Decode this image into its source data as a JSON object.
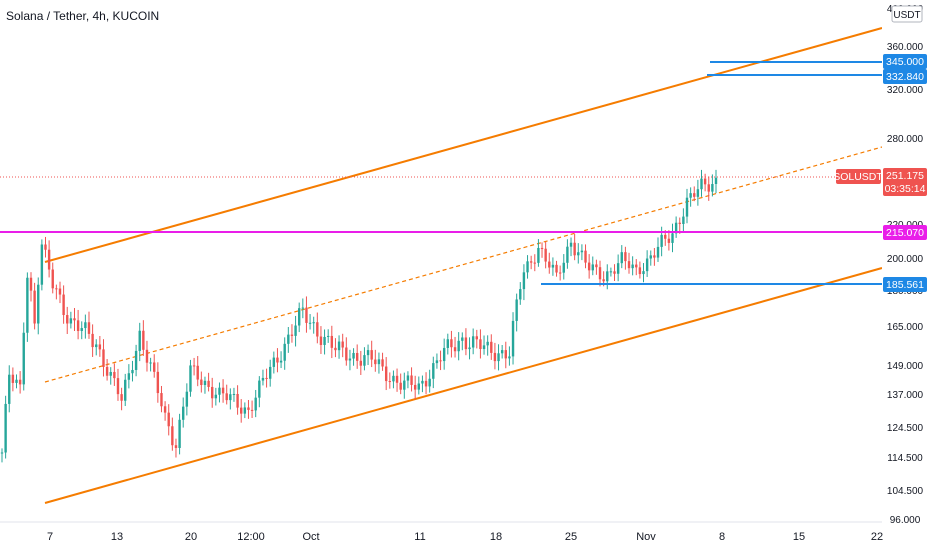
{
  "header": {
    "title": "Solana / Tether, 4h, KUCOIN",
    "currency_button": "USDT"
  },
  "chart_data": {
    "type": "candlestick",
    "symbol": "SOLUSDT",
    "interval": "4h",
    "exchange": "KUCOIN",
    "y_scale": "log",
    "ylim": [
      96,
      400
    ],
    "y_ticks": [
      "400.000",
      "360.000",
      "320.000",
      "280.000",
      "220.000",
      "200.000",
      "180.000",
      "165.000",
      "149.000",
      "137.000",
      "124.500",
      "114.500",
      "104.500",
      "96.000"
    ],
    "x_ticks": [
      "7",
      "13",
      "20",
      "12:00",
      "Oct",
      "11",
      "18",
      "25",
      "Nov",
      "8",
      "15",
      "22"
    ],
    "last_price": {
      "label": "SOLUSDT",
      "value": "251.175",
      "countdown": "03:35:14",
      "color": "#ef5350"
    },
    "horizontal_levels": [
      {
        "value": "345.000",
        "color": "#1e88e5"
      },
      {
        "value": "332.840",
        "color": "#1e88e5"
      },
      {
        "value": "215.070",
        "color": "#e91ee9"
      },
      {
        "value": "185.561",
        "color": "#1e88e5"
      }
    ],
    "channel": {
      "color": "#f57c00",
      "upper": "trend line",
      "lower": "trend line",
      "mid": "dashed trend line"
    },
    "candle_colors": {
      "up": "#26a69a",
      "down": "#ef5350"
    },
    "price_path": [
      {
        "t": 0,
        "p": 116
      },
      {
        "t": 2,
        "p": 144
      },
      {
        "t": 5,
        "p": 139
      },
      {
        "t": 7,
        "p": 192
      },
      {
        "t": 9,
        "p": 166
      },
      {
        "t": 11,
        "p": 207
      },
      {
        "t": 14,
        "p": 183
      },
      {
        "t": 19,
        "p": 167
      },
      {
        "t": 26,
        "p": 158
      },
      {
        "t": 33,
        "p": 134
      },
      {
        "t": 38,
        "p": 162
      },
      {
        "t": 45,
        "p": 128
      },
      {
        "t": 48,
        "p": 119
      },
      {
        "t": 52,
        "p": 146
      },
      {
        "t": 60,
        "p": 137
      },
      {
        "t": 68,
        "p": 131
      },
      {
        "t": 74,
        "p": 147
      },
      {
        "t": 80,
        "p": 163
      },
      {
        "t": 83,
        "p": 170
      },
      {
        "t": 92,
        "p": 155
      },
      {
        "t": 102,
        "p": 151
      },
      {
        "t": 110,
        "p": 141
      },
      {
        "t": 115,
        "p": 140
      },
      {
        "t": 122,
        "p": 154
      },
      {
        "t": 127,
        "p": 160
      },
      {
        "t": 134,
        "p": 155
      },
      {
        "t": 140,
        "p": 154
      },
      {
        "t": 144,
        "p": 191
      },
      {
        "t": 148,
        "p": 207
      },
      {
        "t": 153,
        "p": 187
      },
      {
        "t": 157,
        "p": 211
      },
      {
        "t": 162,
        "p": 193
      },
      {
        "t": 166,
        "p": 189
      },
      {
        "t": 171,
        "p": 198
      },
      {
        "t": 175,
        "p": 192
      },
      {
        "t": 180,
        "p": 203
      },
      {
        "t": 185,
        "p": 214
      },
      {
        "t": 189,
        "p": 236
      },
      {
        "t": 193,
        "p": 245
      },
      {
        "t": 197,
        "p": 251
      }
    ]
  }
}
